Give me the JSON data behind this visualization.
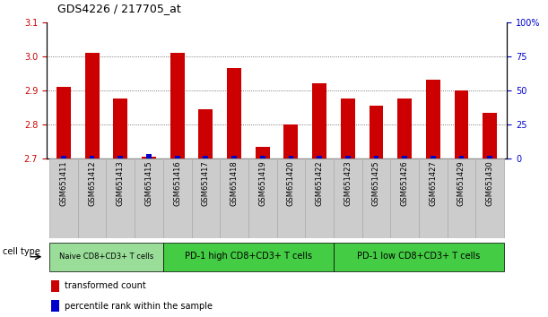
{
  "title": "GDS4226 / 217705_at",
  "samples": [
    "GSM651411",
    "GSM651412",
    "GSM651413",
    "GSM651415",
    "GSM651416",
    "GSM651417",
    "GSM651418",
    "GSM651419",
    "GSM651420",
    "GSM651422",
    "GSM651423",
    "GSM651425",
    "GSM651426",
    "GSM651427",
    "GSM651429",
    "GSM651430"
  ],
  "transformed_count": [
    2.91,
    3.01,
    2.875,
    2.705,
    3.01,
    2.845,
    2.965,
    2.735,
    2.8,
    2.92,
    2.875,
    2.855,
    2.875,
    2.93,
    2.9,
    2.835
  ],
  "percentile_rank": [
    2,
    2,
    2,
    3,
    2,
    2,
    2,
    2,
    2,
    2,
    2,
    2,
    2,
    2,
    2,
    2
  ],
  "ylim_left": [
    2.7,
    3.1
  ],
  "ylim_right": [
    0,
    100
  ],
  "yticks_left": [
    2.7,
    2.8,
    2.9,
    3.0,
    3.1
  ],
  "yticks_right": [
    0,
    25,
    50,
    75,
    100
  ],
  "ytick_labels_right": [
    "0",
    "25",
    "50",
    "75",
    "100%"
  ],
  "bar_color_red": "#cc0000",
  "bar_color_blue": "#0000cc",
  "grid_color": "#555555",
  "cell_type_groups": [
    {
      "label": "Naive CD8+CD3+ T cells",
      "start": 0,
      "end": 3,
      "color": "#99dd99"
    },
    {
      "label": "PD-1 high CD8+CD3+ T cells",
      "start": 4,
      "end": 9,
      "color": "#44cc44"
    },
    {
      "label": "PD-1 low CD8+CD3+ T cells",
      "start": 10,
      "end": 15,
      "color": "#44cc44"
    }
  ],
  "cell_type_label": "cell type",
  "legend_red_label": "transformed count",
  "legend_blue_label": "percentile rank within the sample",
  "bar_width": 0.5,
  "blue_bar_width": 0.18,
  "tick_color_left": "#cc0000",
  "tick_color_right": "#0000cc",
  "xlabel_gray": "#cccccc",
  "xlabel_gray_border": "#aaaaaa",
  "title_fontsize": 9,
  "tick_fontsize": 7,
  "sample_fontsize": 6,
  "legend_fontsize": 7,
  "group_fontsize_small": 6,
  "group_fontsize_large": 7
}
